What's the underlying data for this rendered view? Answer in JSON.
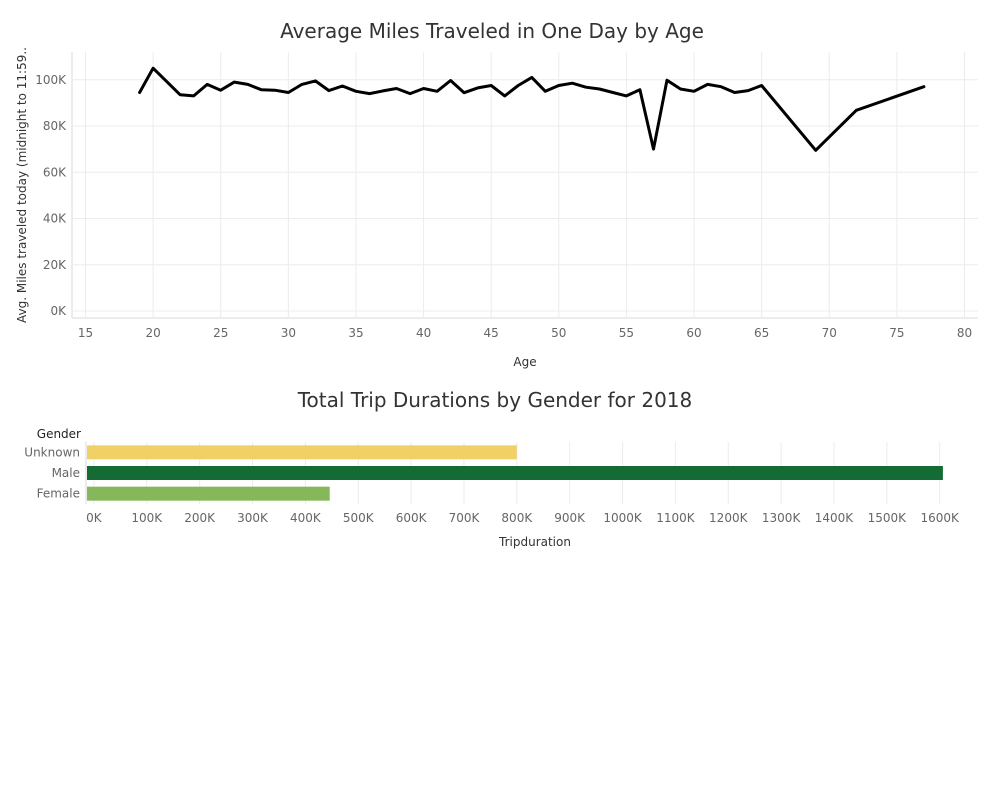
{
  "chart_data": [
    {
      "type": "line",
      "title": "Average Miles Traveled in One Day by Age",
      "xlabel": "Age",
      "ylabel": "Avg. Miles traveled today (midnight to 11:59..",
      "xlim": [
        14,
        81
      ],
      "ylim": [
        -3000,
        112000
      ],
      "x_ticks": [
        15,
        20,
        25,
        30,
        35,
        40,
        45,
        50,
        55,
        60,
        65,
        70,
        75,
        80
      ],
      "y_ticks": [
        0,
        20000,
        40000,
        60000,
        80000,
        100000
      ],
      "y_tick_labels": [
        "0K",
        "20K",
        "40K",
        "60K",
        "80K",
        "100K"
      ],
      "grid": true,
      "line_color": "#000000",
      "x": [
        19,
        20,
        22,
        23,
        24,
        25,
        26,
        27,
        28,
        29,
        30,
        31,
        32,
        33,
        34,
        35,
        36,
        37,
        38,
        39,
        40,
        41,
        42,
        43,
        44,
        45,
        46,
        47,
        48,
        49,
        50,
        51,
        52,
        53,
        54,
        55,
        56,
        57,
        58,
        59,
        60,
        61,
        62,
        63,
        64,
        65,
        69,
        72,
        77
      ],
      "y": [
        94500,
        105000,
        93500,
        93000,
        98000,
        95500,
        99000,
        98000,
        95700,
        95500,
        94500,
        98000,
        99500,
        95300,
        97300,
        95000,
        94000,
        95200,
        96200,
        94000,
        96200,
        95000,
        99700,
        94400,
        96500,
        97500,
        93000,
        97500,
        101000,
        95000,
        97500,
        98500,
        96800,
        96000,
        94500,
        93000,
        95700,
        70000,
        99800,
        96000,
        95000,
        98000,
        97000,
        94500,
        95300,
        97500,
        69500,
        86800,
        97000
      ]
    },
    {
      "type": "bar",
      "orientation": "horizontal",
      "title": "Total Trip Durations by Gender for 2018",
      "xlabel": "Tripduration",
      "ylabel": "Gender",
      "xlim": [
        -15000,
        1680000
      ],
      "x_ticks": [
        0,
        100000,
        200000,
        300000,
        400000,
        500000,
        600000,
        700000,
        800000,
        900000,
        1000000,
        1100000,
        1200000,
        1300000,
        1400000,
        1500000,
        1600000
      ],
      "x_tick_labels": [
        "0K",
        "100K",
        "200K",
        "300K",
        "400K",
        "500K",
        "600K",
        "700K",
        "800K",
        "900K",
        "1000K",
        "1100K",
        "1200K",
        "1300K",
        "1400K",
        "1500K",
        "1600K"
      ],
      "grid": true,
      "categories": [
        "Unknown",
        "Male",
        "Female"
      ],
      "values": [
        800000,
        1606000,
        446000
      ],
      "colors": [
        "#f2d068",
        "#146b34",
        "#86b75b"
      ]
    }
  ]
}
